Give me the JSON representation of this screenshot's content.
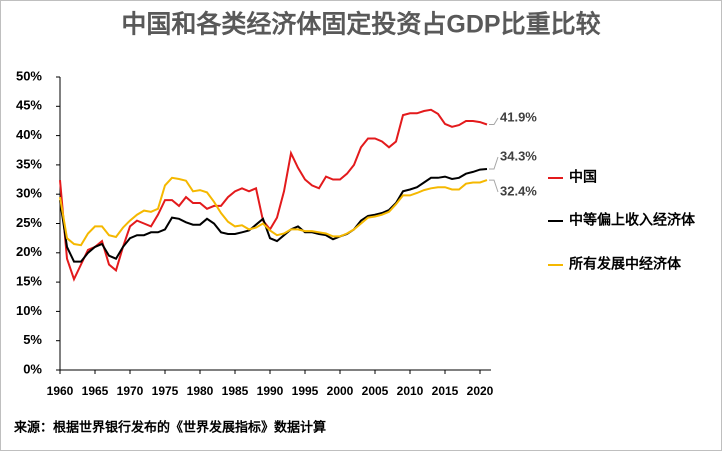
{
  "chart_data": {
    "type": "line",
    "title": "中国和各类经济体固定投资占GDP比重比较",
    "footnote": "来源：根据世界银行发布的《世界发展指标》数据计算",
    "x": [
      1960,
      1961,
      1962,
      1963,
      1964,
      1965,
      1966,
      1967,
      1968,
      1969,
      1970,
      1971,
      1972,
      1973,
      1974,
      1975,
      1976,
      1977,
      1978,
      1979,
      1980,
      1981,
      1982,
      1983,
      1984,
      1985,
      1986,
      1987,
      1988,
      1989,
      1990,
      1991,
      1992,
      1993,
      1994,
      1995,
      1996,
      1997,
      1998,
      1999,
      2000,
      2001,
      2002,
      2003,
      2004,
      2005,
      2006,
      2007,
      2008,
      2009,
      2010,
      2011,
      2012,
      2013,
      2014,
      2015,
      2016,
      2017,
      2018,
      2019,
      2020,
      2021
    ],
    "xlim": [
      1960,
      2021
    ],
    "xticks": [
      1960,
      1965,
      1970,
      1975,
      1980,
      1985,
      1990,
      1995,
      2000,
      2005,
      2010,
      2015,
      2020
    ],
    "ylim": [
      0,
      50
    ],
    "yticks": [
      {
        "value": 0,
        "label": "0%"
      },
      {
        "value": 5,
        "label": "5%"
      },
      {
        "value": 10,
        "label": "10%"
      },
      {
        "value": 15,
        "label": "15%"
      },
      {
        "value": 20,
        "label": "20%"
      },
      {
        "value": 25,
        "label": "25%"
      },
      {
        "value": 30,
        "label": "30%"
      },
      {
        "value": 35,
        "label": "35%"
      },
      {
        "value": 40,
        "label": "40%"
      },
      {
        "value": 45,
        "label": "45%"
      },
      {
        "value": 50,
        "label": "50%"
      }
    ],
    "grid": false,
    "legend": "right",
    "series": [
      {
        "name": "中国",
        "color": "#e31a1c",
        "values": [
          32.4,
          19,
          15.5,
          18,
          20.5,
          21,
          22,
          18,
          17,
          21,
          24.5,
          25.5,
          25,
          24.5,
          26.5,
          29,
          29,
          28,
          29.5,
          28.5,
          28.5,
          27.5,
          28,
          28,
          29.5,
          30.5,
          31,
          30.5,
          31,
          25.5,
          24,
          26,
          30.5,
          37,
          34.5,
          32.5,
          31.5,
          31,
          33,
          32.5,
          32.5,
          33.5,
          35,
          38,
          39.5,
          39.5,
          39,
          38,
          39,
          43.5,
          43.8,
          43.8,
          44.2,
          44.4,
          43.7,
          42,
          41.5,
          41.8,
          42.5,
          42.5,
          42.3,
          41.9
        ],
        "value_labels": [
          null,
          null,
          null,
          null,
          null,
          null,
          null,
          null,
          null,
          null,
          null,
          null,
          null,
          null,
          null,
          null,
          null,
          null,
          null,
          null,
          null,
          null,
          null,
          null,
          null,
          null,
          null,
          null,
          null,
          null,
          null,
          null,
          null,
          null,
          null,
          null,
          null,
          null,
          null,
          null,
          null,
          null,
          null,
          null,
          null,
          null,
          null,
          null,
          null,
          null,
          null,
          null,
          null,
          null,
          null,
          null,
          null,
          null,
          null,
          null,
          null,
          "41.9%"
        ]
      },
      {
        "name": "中等偏上收入经济体",
        "color": "#000000",
        "values": [
          29,
          21,
          18.5,
          18.5,
          20,
          21,
          21.5,
          19.5,
          19,
          21,
          22.5,
          23,
          23,
          23.5,
          23.5,
          24,
          26,
          25.8,
          25.2,
          24.8,
          24.8,
          25.8,
          25,
          23.5,
          23.2,
          23.2,
          23.5,
          23.8,
          24.8,
          25.8,
          22.5,
          22,
          23,
          24,
          24.5,
          23.5,
          23.5,
          23.2,
          23,
          22.3,
          22.8,
          23.2,
          24,
          25.5,
          26.3,
          26.5,
          26.8,
          27.3,
          28.5,
          30.5,
          30.8,
          31.2,
          32,
          32.8,
          32.8,
          33,
          32.6,
          32.8,
          33.5,
          33.8,
          34.2,
          34.3
        ],
        "value_labels": [
          null,
          null,
          null,
          null,
          null,
          null,
          null,
          null,
          null,
          null,
          null,
          null,
          null,
          null,
          null,
          null,
          null,
          null,
          null,
          null,
          null,
          null,
          null,
          null,
          null,
          null,
          null,
          null,
          null,
          null,
          null,
          null,
          null,
          null,
          null,
          null,
          null,
          null,
          null,
          null,
          null,
          null,
          null,
          null,
          null,
          null,
          null,
          null,
          null,
          null,
          null,
          null,
          null,
          null,
          null,
          null,
          null,
          null,
          null,
          null,
          null,
          "34.3%"
        ]
      },
      {
        "name": "所有发展中经济体",
        "color": "#f5b800",
        "values": [
          29.5,
          22.5,
          21.5,
          21.3,
          23.3,
          24.5,
          24.5,
          23,
          22.7,
          24.3,
          25.5,
          26.5,
          27.2,
          27,
          27.5,
          31.5,
          32.8,
          32.6,
          32.3,
          30.5,
          30.7,
          30.3,
          28.7,
          26.8,
          25.3,
          24.5,
          24.7,
          24,
          24.3,
          25,
          23.8,
          23,
          23.3,
          24,
          24,
          23.7,
          23.7,
          23.5,
          23.3,
          22.8,
          22.8,
          23.3,
          24,
          25,
          26,
          26.2,
          26.5,
          27,
          28.3,
          29.8,
          29.8,
          30.2,
          30.7,
          31,
          31.2,
          31.2,
          30.8,
          30.8,
          31.8,
          32,
          32,
          32.4
        ],
        "value_labels": [
          null,
          null,
          null,
          null,
          null,
          null,
          null,
          null,
          null,
          null,
          null,
          null,
          null,
          null,
          null,
          null,
          null,
          null,
          null,
          null,
          null,
          null,
          null,
          null,
          null,
          null,
          null,
          null,
          null,
          null,
          null,
          null,
          null,
          null,
          null,
          null,
          null,
          null,
          null,
          null,
          null,
          null,
          null,
          null,
          null,
          null,
          null,
          null,
          null,
          null,
          null,
          null,
          null,
          null,
          null,
          null,
          null,
          null,
          null,
          null,
          null,
          "32.4%"
        ]
      }
    ]
  }
}
